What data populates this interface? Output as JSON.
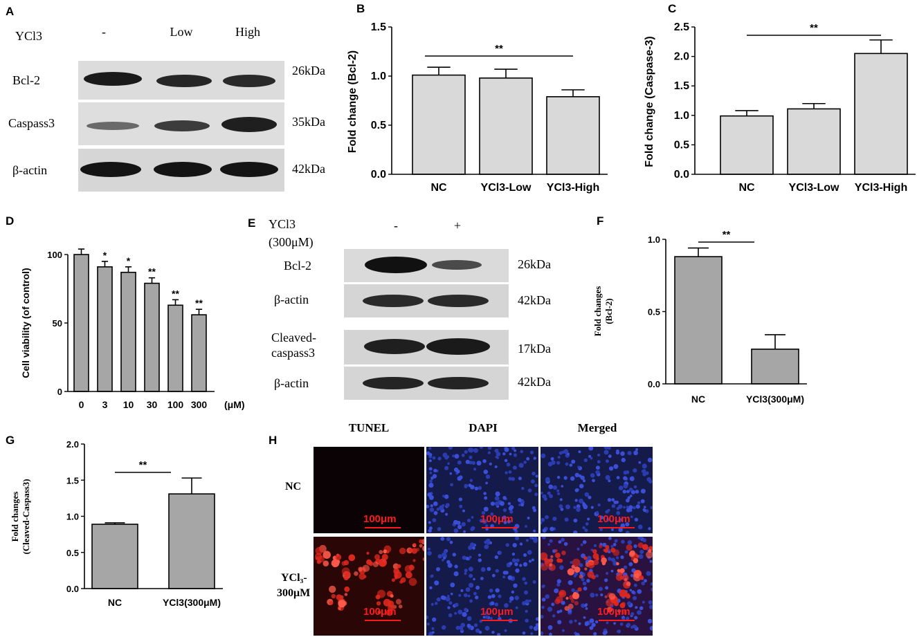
{
  "panelA": {
    "letter": "A",
    "treatment_label": "YCl3",
    "lanes": [
      "-",
      "Low",
      "High"
    ],
    "rows": [
      {
        "name": "Bcl-2",
        "size": "26kDa"
      },
      {
        "name": "Caspass3",
        "size": "35kDa"
      },
      {
        "name": "β-actin",
        "size": "42kDa"
      }
    ]
  },
  "panelE": {
    "letter": "E",
    "treatment_label_1": "YCl3",
    "treatment_label_2": "(300μM)",
    "lanes": [
      "-",
      "+"
    ],
    "rows": [
      {
        "name": "Bcl-2",
        "size": "26kDa"
      },
      {
        "name": "β-actin",
        "size": "42kDa"
      },
      {
        "name": "Cleaved-",
        "name2": "caspass3",
        "size": "17kDa"
      },
      {
        "name": "β-actin",
        "size": "42kDa"
      }
    ]
  },
  "panelH": {
    "letter": "H",
    "columns": [
      "TUNEL",
      "DAPI",
      "Merged"
    ],
    "rows": [
      "NC",
      "YCl₃-",
      "300μM"
    ],
    "scale_bar": "100μm"
  },
  "chart_data": [
    {
      "id": "B",
      "letter": "B",
      "type": "bar",
      "categories": [
        "NC",
        "YCl3-Low",
        "YCl3-High"
      ],
      "values": [
        1.01,
        0.98,
        0.79
      ],
      "errors": [
        0.08,
        0.09,
        0.07
      ],
      "ylabel": "Fold change (Bcl-2)",
      "ylim": [
        0,
        1.5
      ],
      "yticks": [
        "0.0",
        "0.5",
        "1.0",
        "1.5"
      ],
      "significance": [
        {
          "from": 0,
          "to": 2,
          "label": "**"
        }
      ],
      "bar_color": "#d9d9d9"
    },
    {
      "id": "C",
      "letter": "C",
      "type": "bar",
      "categories": [
        "NC",
        "YCl3-Low",
        "YCl3-High"
      ],
      "values": [
        0.99,
        1.11,
        2.05
      ],
      "errors": [
        0.09,
        0.09,
        0.23
      ],
      "ylabel": "Fold change (Caspase-3)",
      "ylim": [
        0,
        2.5
      ],
      "yticks": [
        "0.0",
        "0.5",
        "1.0",
        "1.5",
        "2.0",
        "2.5"
      ],
      "significance": [
        {
          "from": 0,
          "to": 2,
          "label": "**"
        }
      ],
      "bar_color": "#d9d9d9"
    },
    {
      "id": "D",
      "letter": "D",
      "type": "bar",
      "categories": [
        "0",
        "3",
        "10",
        "30",
        "100",
        "300"
      ],
      "unit": "(μM)",
      "values": [
        100,
        91,
        87,
        79,
        63,
        56
      ],
      "errors": [
        4,
        4,
        4,
        4,
        4,
        4
      ],
      "ylabel": "Cell viability (of control)",
      "ylim": [
        0,
        100
      ],
      "yticks": [
        "0",
        "50",
        "100"
      ],
      "marks": [
        "",
        "*",
        "*",
        "**",
        "**",
        "**"
      ],
      "bar_color": "#a6a6a6"
    },
    {
      "id": "F",
      "letter": "F",
      "type": "bar",
      "categories": [
        "NC",
        "YCl3(300μM)"
      ],
      "values": [
        0.88,
        0.24
      ],
      "errors": [
        0.06,
        0.1
      ],
      "ylabel": "Fold changes",
      "ylabel2": "(Bcl-2)",
      "ylim": [
        0,
        1.0
      ],
      "yticks": [
        "0.0",
        "0.5",
        "1.0"
      ],
      "significance": [
        {
          "from": 0,
          "to": 1,
          "label": "**"
        }
      ],
      "bar_color": "#a6a6a6"
    },
    {
      "id": "G",
      "letter": "G",
      "type": "bar",
      "categories": [
        "NC",
        "YCl3(300μM)"
      ],
      "values": [
        0.89,
        1.31
      ],
      "errors": [
        0.02,
        0.22
      ],
      "ylabel": "Fold changes",
      "ylabel2": "(Cleaved-Caspass3)",
      "ylim": [
        0,
        2.0
      ],
      "yticks": [
        "0.0",
        "0.5",
        "1.0",
        "1.5",
        "2.0"
      ],
      "significance": [
        {
          "from": 0,
          "to": 1,
          "label": "**"
        }
      ],
      "bar_color": "#a6a6a6"
    }
  ]
}
